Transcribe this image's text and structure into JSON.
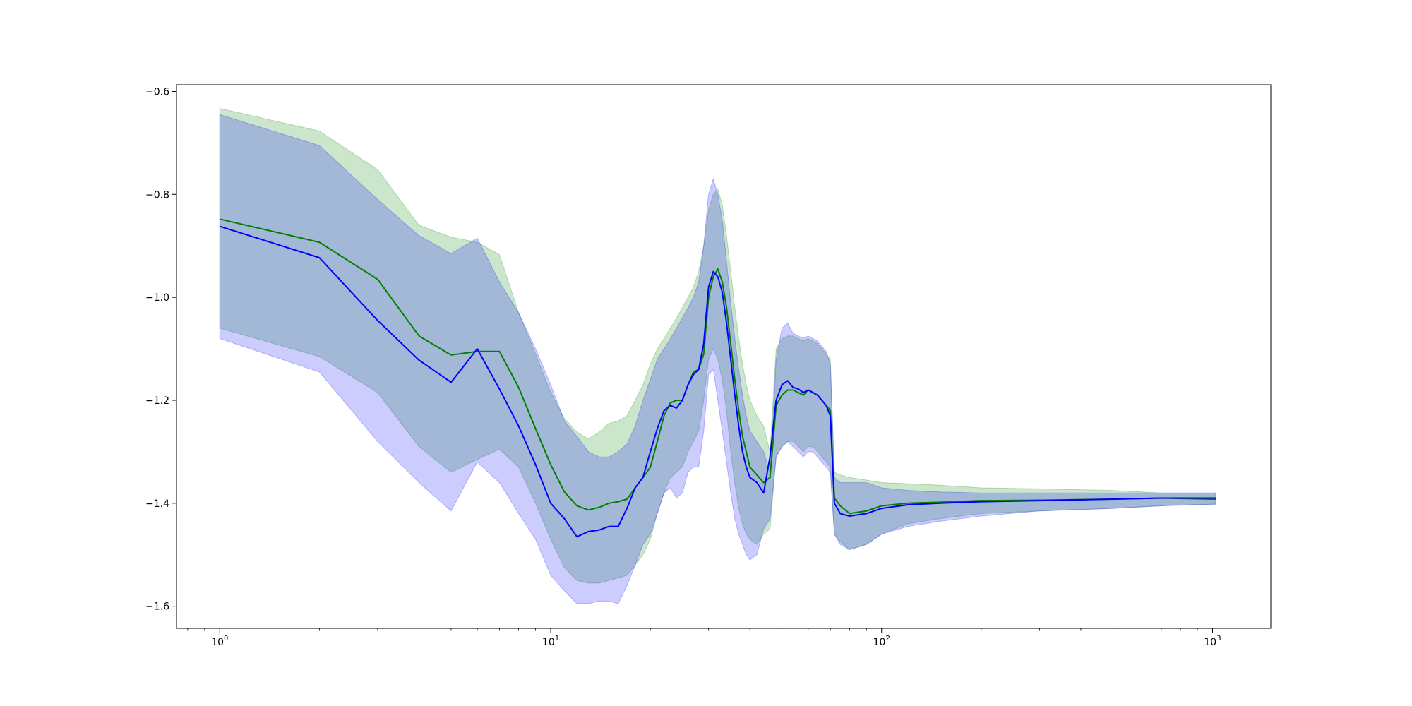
{
  "chart_data": {
    "type": "line",
    "xscale": "log",
    "xlim": [
      0.74,
      1500
    ],
    "ylim": [
      -1.643,
      -0.587
    ],
    "grid": false,
    "legend": false,
    "title": "",
    "xlabel": "",
    "ylabel": "",
    "y_ticks": [
      {
        "value": -0.6,
        "label": "−0.6"
      },
      {
        "value": -0.8,
        "label": "−0.8"
      },
      {
        "value": -1.0,
        "label": "−1.0"
      },
      {
        "value": -1.2,
        "label": "−1.2"
      },
      {
        "value": -1.4,
        "label": "−1.4"
      },
      {
        "value": -1.6,
        "label": "−1.6"
      }
    ],
    "x_ticks": [
      {
        "value": 1,
        "base": "10",
        "exp": "0"
      },
      {
        "value": 10,
        "base": "10",
        "exp": "1"
      },
      {
        "value": 100,
        "base": "10",
        "exp": "2"
      },
      {
        "value": 1000,
        "base": "10",
        "exp": "3"
      }
    ],
    "series": [
      {
        "color": "#008000",
        "band_color": "#008000",
        "x": [
          1,
          2,
          3,
          4,
          5,
          6,
          7,
          8,
          9,
          10,
          11,
          12,
          13,
          14,
          15,
          16,
          17,
          18,
          19,
          20,
          21,
          22,
          23,
          24,
          25,
          26,
          27,
          28,
          29,
          30,
          31,
          32,
          33,
          34,
          35,
          36,
          37,
          38,
          39,
          40,
          42,
          44,
          46,
          48,
          50,
          52,
          54,
          56,
          58,
          60,
          62,
          64,
          66,
          68,
          70,
          72,
          75,
          80,
          90,
          100,
          120,
          150,
          200,
          300,
          500,
          700,
          1000,
          1024
        ],
        "mean": [
          -0.848,
          -0.893,
          -0.965,
          -1.075,
          -1.112,
          -1.105,
          -1.105,
          -1.175,
          -1.255,
          -1.325,
          -1.378,
          -1.405,
          -1.413,
          -1.408,
          -1.4,
          -1.397,
          -1.392,
          -1.37,
          -1.35,
          -1.33,
          -1.28,
          -1.23,
          -1.205,
          -1.2,
          -1.2,
          -1.17,
          -1.145,
          -1.14,
          -1.11,
          -1.0,
          -0.96,
          -0.945,
          -0.97,
          -1.02,
          -1.09,
          -1.16,
          -1.22,
          -1.27,
          -1.3,
          -1.33,
          -1.345,
          -1.36,
          -1.35,
          -1.21,
          -1.19,
          -1.18,
          -1.18,
          -1.185,
          -1.19,
          -1.18,
          -1.185,
          -1.19,
          -1.2,
          -1.21,
          -1.22,
          -1.39,
          -1.405,
          -1.42,
          -1.415,
          -1.405,
          -1.4,
          -1.398,
          -1.395,
          -1.394,
          -1.392,
          -1.39,
          -1.392,
          -1.392
        ],
        "upper": [
          -0.633,
          -0.677,
          -0.752,
          -0.86,
          -0.883,
          -0.893,
          -0.917,
          -1.03,
          -1.11,
          -1.185,
          -1.235,
          -1.262,
          -1.275,
          -1.262,
          -1.245,
          -1.24,
          -1.23,
          -1.2,
          -1.17,
          -1.13,
          -1.1,
          -1.08,
          -1.06,
          -1.04,
          -1.02,
          -1.0,
          -0.98,
          -0.95,
          -0.9,
          -0.83,
          -0.8,
          -0.79,
          -0.82,
          -0.88,
          -0.95,
          -1.02,
          -1.08,
          -1.13,
          -1.17,
          -1.2,
          -1.23,
          -1.25,
          -1.3,
          -1.1,
          -1.08,
          -1.075,
          -1.075,
          -1.08,
          -1.085,
          -1.08,
          -1.085,
          -1.09,
          -1.1,
          -1.11,
          -1.12,
          -1.34,
          -1.345,
          -1.35,
          -1.355,
          -1.36,
          -1.362,
          -1.365,
          -1.37,
          -1.372,
          -1.375,
          -1.38,
          -1.38,
          -1.38
        ],
        "lower": [
          -1.06,
          -1.115,
          -1.185,
          -1.29,
          -1.34,
          -1.315,
          -1.295,
          -1.33,
          -1.4,
          -1.47,
          -1.525,
          -1.55,
          -1.555,
          -1.555,
          -1.55,
          -1.545,
          -1.54,
          -1.52,
          -1.5,
          -1.47,
          -1.42,
          -1.38,
          -1.35,
          -1.34,
          -1.33,
          -1.3,
          -1.28,
          -1.26,
          -1.2,
          -1.12,
          -1.1,
          -1.12,
          -1.16,
          -1.22,
          -1.3,
          -1.36,
          -1.41,
          -1.44,
          -1.46,
          -1.47,
          -1.48,
          -1.46,
          -1.45,
          -1.31,
          -1.29,
          -1.28,
          -1.28,
          -1.29,
          -1.3,
          -1.29,
          -1.29,
          -1.3,
          -1.31,
          -1.32,
          -1.33,
          -1.46,
          -1.475,
          -1.49,
          -1.48,
          -1.46,
          -1.44,
          -1.43,
          -1.42,
          -1.415,
          -1.41,
          -1.405,
          -1.402,
          -1.402
        ]
      },
      {
        "color": "#0000ff",
        "band_color": "#0000ff",
        "x": [
          1,
          2,
          3,
          4,
          5,
          6,
          7,
          8,
          9,
          10,
          11,
          12,
          13,
          14,
          15,
          16,
          17,
          18,
          19,
          20,
          21,
          22,
          23,
          24,
          25,
          26,
          27,
          28,
          29,
          30,
          31,
          32,
          33,
          34,
          35,
          36,
          37,
          38,
          39,
          40,
          42,
          44,
          46,
          48,
          50,
          52,
          54,
          56,
          58,
          60,
          62,
          64,
          66,
          68,
          70,
          72,
          75,
          80,
          90,
          100,
          120,
          150,
          200,
          300,
          500,
          700,
          1000,
          1024
        ],
        "mean": [
          -0.862,
          -0.923,
          -1.045,
          -1.122,
          -1.165,
          -1.1,
          -1.178,
          -1.25,
          -1.325,
          -1.4,
          -1.43,
          -1.465,
          -1.455,
          -1.452,
          -1.445,
          -1.445,
          -1.41,
          -1.37,
          -1.35,
          -1.3,
          -1.255,
          -1.22,
          -1.21,
          -1.215,
          -1.2,
          -1.17,
          -1.15,
          -1.14,
          -1.09,
          -0.98,
          -0.95,
          -0.96,
          -0.99,
          -1.05,
          -1.12,
          -1.19,
          -1.25,
          -1.3,
          -1.33,
          -1.35,
          -1.36,
          -1.38,
          -1.31,
          -1.2,
          -1.17,
          -1.162,
          -1.175,
          -1.178,
          -1.185,
          -1.18,
          -1.185,
          -1.19,
          -1.2,
          -1.21,
          -1.23,
          -1.4,
          -1.42,
          -1.425,
          -1.42,
          -1.41,
          -1.403,
          -1.4,
          -1.397,
          -1.395,
          -1.392,
          -1.39,
          -1.39,
          -1.39
        ],
        "upper": [
          -0.645,
          -0.705,
          -0.81,
          -0.88,
          -0.915,
          -0.885,
          -0.97,
          -1.03,
          -1.1,
          -1.17,
          -1.24,
          -1.27,
          -1.3,
          -1.31,
          -1.31,
          -1.3,
          -1.285,
          -1.25,
          -1.2,
          -1.16,
          -1.12,
          -1.1,
          -1.08,
          -1.06,
          -1.04,
          -1.02,
          -1.0,
          -0.97,
          -0.9,
          -0.8,
          -0.77,
          -0.8,
          -0.85,
          -0.93,
          -1.01,
          -1.08,
          -1.14,
          -1.19,
          -1.23,
          -1.26,
          -1.28,
          -1.3,
          -1.34,
          -1.12,
          -1.06,
          -1.05,
          -1.07,
          -1.075,
          -1.08,
          -1.075,
          -1.08,
          -1.085,
          -1.095,
          -1.105,
          -1.13,
          -1.35,
          -1.36,
          -1.36,
          -1.36,
          -1.37,
          -1.375,
          -1.378,
          -1.38,
          -1.38,
          -1.38,
          -1.38,
          -1.38,
          -1.38
        ],
        "lower": [
          -1.08,
          -1.145,
          -1.28,
          -1.36,
          -1.415,
          -1.32,
          -1.36,
          -1.42,
          -1.47,
          -1.54,
          -1.57,
          -1.595,
          -1.595,
          -1.59,
          -1.59,
          -1.595,
          -1.56,
          -1.52,
          -1.48,
          -1.46,
          -1.42,
          -1.38,
          -1.37,
          -1.39,
          -1.38,
          -1.34,
          -1.33,
          -1.33,
          -1.26,
          -1.15,
          -1.14,
          -1.2,
          -1.26,
          -1.32,
          -1.38,
          -1.43,
          -1.46,
          -1.48,
          -1.5,
          -1.51,
          -1.5,
          -1.45,
          -1.43,
          -1.31,
          -1.29,
          -1.28,
          -1.29,
          -1.3,
          -1.31,
          -1.3,
          -1.3,
          -1.31,
          -1.32,
          -1.33,
          -1.34,
          -1.46,
          -1.48,
          -1.49,
          -1.48,
          -1.46,
          -1.445,
          -1.435,
          -1.425,
          -1.415,
          -1.41,
          -1.405,
          -1.402,
          -1.402
        ]
      }
    ]
  }
}
